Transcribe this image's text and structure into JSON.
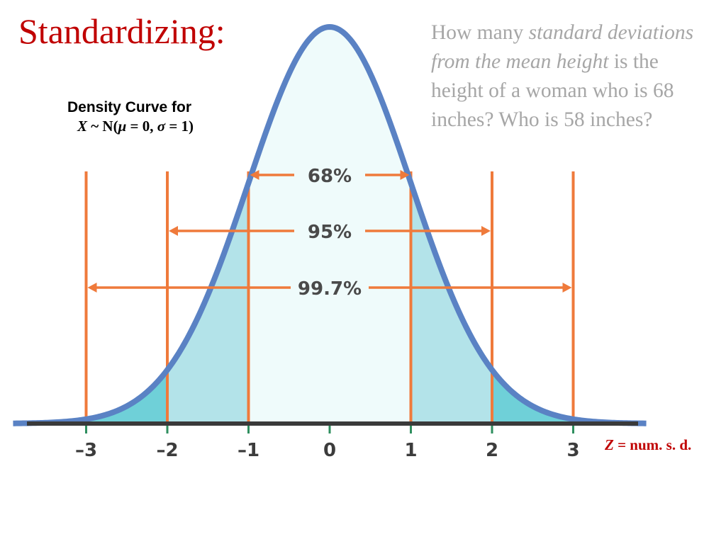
{
  "slide": {
    "title": "Standardizing:"
  },
  "caption": {
    "line1": "Density Curve for",
    "x_var": "X",
    "tilde_n": " ~ N(",
    "mu": "μ",
    "eq0": " = 0, ",
    "sigma": "σ",
    "eq1": " = 1)"
  },
  "question": {
    "part1": "How many ",
    "italic": "standard deviations from the mean height",
    "part2": " is the height of a woman who is 68 inches? Who is 58 inches?"
  },
  "z_legend": {
    "z": "Z",
    "rest": " = num. s. d."
  },
  "diagram": {
    "axis_ticks": [
      {
        "value": -3,
        "label": "–3"
      },
      {
        "value": -2,
        "label": "–2"
      },
      {
        "value": -1,
        "label": "–1"
      },
      {
        "value": 0,
        "label": "0"
      },
      {
        "value": 1,
        "label": "1"
      },
      {
        "value": 2,
        "label": "2"
      },
      {
        "value": 3,
        "label": "3"
      }
    ],
    "intervals": [
      {
        "k": 1,
        "label": "68%"
      },
      {
        "k": 2,
        "label": "95%"
      },
      {
        "k": 3,
        "label": "99.7%"
      }
    ],
    "colors": {
      "curve": "#5a82c4",
      "fill_outer": "#6fd0d8",
      "fill_mid": "#b3e3e9",
      "fill_center": "#effbfb",
      "orange": "#ef7a3b",
      "axis": "#3a3a3a",
      "tick": "#2f8f5f",
      "title_red": "#c00000",
      "question_gray": "#a6a6a6"
    }
  }
}
